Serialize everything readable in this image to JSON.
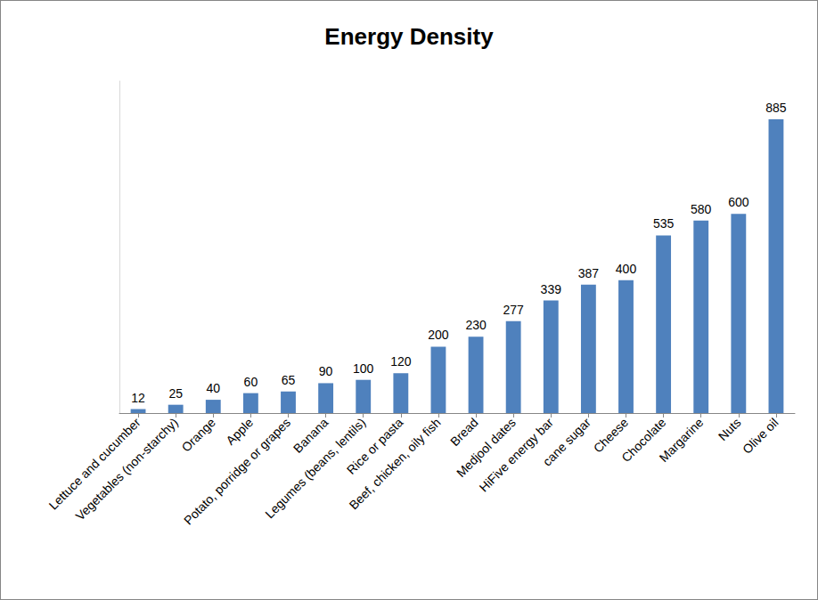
{
  "chart_data": {
    "type": "bar",
    "title": "Energy Density",
    "categories": [
      "Lettuce and cucumber",
      "Vegetables (non-starchy)",
      "Orange",
      "Apple",
      "Potato, porridge or grapes",
      "Banana",
      "Legumes (beans, lentils)",
      "Rice or pasta",
      "Beef, chicken, oily fish",
      "Bread",
      "Medjool dates",
      "HiFive energy bar",
      "cane sugar",
      "Cheese",
      "Chocolate",
      "Margarine",
      "Nuts",
      "Olive oil"
    ],
    "values": [
      12,
      25,
      40,
      60,
      65,
      90,
      100,
      120,
      200,
      230,
      277,
      339,
      387,
      400,
      535,
      580,
      600,
      885
    ],
    "color": "#4f81bd",
    "ylim": [
      0,
      1000
    ],
    "grid": false,
    "data_labels": true,
    "tick_labels": "x"
  }
}
